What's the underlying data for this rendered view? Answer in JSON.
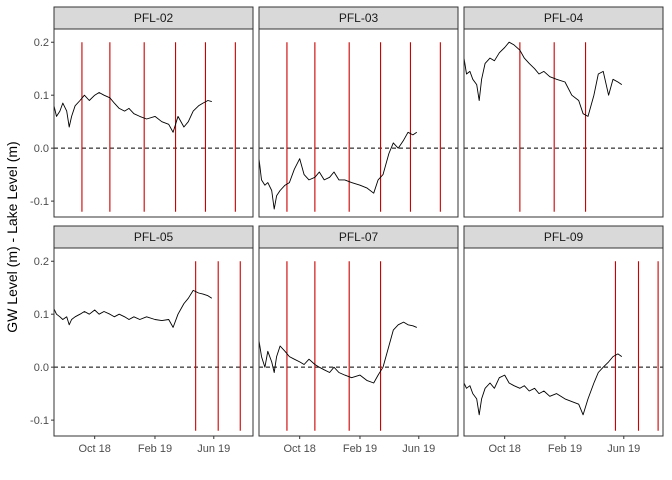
{
  "chart_data": {
    "type": "line",
    "layout": "facet-grid 3x2",
    "ylabel": "GW Level (m) - Lake Level (m)",
    "xlabel": "",
    "title": "",
    "ylim": [
      -0.13,
      0.225
    ],
    "xlim": [
      "2018-07-10",
      "2019-08-20"
    ],
    "x_ticks": [
      {
        "date": "2018-10-01",
        "label": "Oct 18"
      },
      {
        "date": "2019-02-01",
        "label": "Feb 19"
      },
      {
        "date": "2019-06-01",
        "label": "Jun 19"
      }
    ],
    "y_ticks": [
      {
        "value": -0.1,
        "label": "-0.1"
      },
      {
        "value": 0.0,
        "label": "0.0"
      },
      {
        "value": 0.1,
        "label": "0.1"
      },
      {
        "value": 0.2,
        "label": "0.2"
      }
    ],
    "reference_line": {
      "y": 0,
      "style": "dashed",
      "color": "#000000"
    },
    "series_color": "#000000",
    "vline_color": "#cc0000",
    "vline_range": [
      -0.12,
      0.2
    ],
    "panels": [
      {
        "name": "PFL-02",
        "vlines": [
          "2018-09-05",
          "2018-11-01",
          "2019-01-10",
          "2019-03-15",
          "2019-05-15",
          "2019-07-15"
        ],
        "series": [
          {
            "x": "2018-07-10",
            "y": 0.08
          },
          {
            "x": "2018-07-15",
            "y": 0.06
          },
          {
            "x": "2018-07-22",
            "y": 0.07
          },
          {
            "x": "2018-07-28",
            "y": 0.085
          },
          {
            "x": "2018-08-05",
            "y": 0.07
          },
          {
            "x": "2018-08-10",
            "y": 0.04
          },
          {
            "x": "2018-08-15",
            "y": 0.06
          },
          {
            "x": "2018-08-22",
            "y": 0.08
          },
          {
            "x": "2018-09-01",
            "y": 0.09
          },
          {
            "x": "2018-09-10",
            "y": 0.1
          },
          {
            "x": "2018-09-20",
            "y": 0.09
          },
          {
            "x": "2018-10-01",
            "y": 0.1
          },
          {
            "x": "2018-10-10",
            "y": 0.105
          },
          {
            "x": "2018-10-20",
            "y": 0.1
          },
          {
            "x": "2018-11-01",
            "y": 0.095
          },
          {
            "x": "2018-11-10",
            "y": 0.085
          },
          {
            "x": "2018-11-20",
            "y": 0.075
          },
          {
            "x": "2018-12-01",
            "y": 0.07
          },
          {
            "x": "2018-12-10",
            "y": 0.075
          },
          {
            "x": "2018-12-20",
            "y": 0.065
          },
          {
            "x": "2019-01-01",
            "y": 0.06
          },
          {
            "x": "2019-01-15",
            "y": 0.055
          },
          {
            "x": "2019-02-01",
            "y": 0.06
          },
          {
            "x": "2019-02-15",
            "y": 0.05
          },
          {
            "x": "2019-03-01",
            "y": 0.045
          },
          {
            "x": "2019-03-10",
            "y": 0.03
          },
          {
            "x": "2019-03-20",
            "y": 0.06
          },
          {
            "x": "2019-04-01",
            "y": 0.04
          },
          {
            "x": "2019-04-10",
            "y": 0.05
          },
          {
            "x": "2019-04-20",
            "y": 0.07
          },
          {
            "x": "2019-05-01",
            "y": 0.08
          },
          {
            "x": "2019-05-10",
            "y": 0.085
          },
          {
            "x": "2019-05-20",
            "y": 0.09
          },
          {
            "x": "2019-05-28",
            "y": 0.088
          }
        ]
      },
      {
        "name": "PFL-03",
        "vlines": [
          "2018-09-05",
          "2018-11-01",
          "2019-01-10",
          "2019-03-15",
          "2019-05-15",
          "2019-07-15"
        ],
        "series": [
          {
            "x": "2018-07-10",
            "y": -0.02
          },
          {
            "x": "2018-07-15",
            "y": -0.06
          },
          {
            "x": "2018-07-22",
            "y": -0.07
          },
          {
            "x": "2018-07-28",
            "y": -0.065
          },
          {
            "x": "2018-08-05",
            "y": -0.08
          },
          {
            "x": "2018-08-10",
            "y": -0.115
          },
          {
            "x": "2018-08-15",
            "y": -0.09
          },
          {
            "x": "2018-08-22",
            "y": -0.08
          },
          {
            "x": "2018-09-01",
            "y": -0.07
          },
          {
            "x": "2018-09-10",
            "y": -0.065
          },
          {
            "x": "2018-09-20",
            "y": -0.04
          },
          {
            "x": "2018-10-01",
            "y": -0.02
          },
          {
            "x": "2018-10-10",
            "y": -0.05
          },
          {
            "x": "2018-10-20",
            "y": -0.06
          },
          {
            "x": "2018-11-01",
            "y": -0.055
          },
          {
            "x": "2018-11-10",
            "y": -0.045
          },
          {
            "x": "2018-11-20",
            "y": -0.06
          },
          {
            "x": "2018-12-01",
            "y": -0.055
          },
          {
            "x": "2018-12-10",
            "y": -0.045
          },
          {
            "x": "2018-12-20",
            "y": -0.06
          },
          {
            "x": "2019-01-01",
            "y": -0.06
          },
          {
            "x": "2019-01-15",
            "y": -0.065
          },
          {
            "x": "2019-02-01",
            "y": -0.07
          },
          {
            "x": "2019-02-15",
            "y": -0.075
          },
          {
            "x": "2019-03-01",
            "y": -0.085
          },
          {
            "x": "2019-03-10",
            "y": -0.06
          },
          {
            "x": "2019-03-20",
            "y": -0.05
          },
          {
            "x": "2019-04-01",
            "y": -0.01
          },
          {
            "x": "2019-04-10",
            "y": 0.01
          },
          {
            "x": "2019-04-20",
            "y": 0.0
          },
          {
            "x": "2019-05-01",
            "y": 0.015
          },
          {
            "x": "2019-05-10",
            "y": 0.03
          },
          {
            "x": "2019-05-20",
            "y": 0.025
          },
          {
            "x": "2019-05-28",
            "y": 0.03
          }
        ]
      },
      {
        "name": "PFL-04",
        "vlines": [
          "2018-11-01",
          "2019-01-10",
          "2019-03-15"
        ],
        "series": [
          {
            "x": "2018-07-10",
            "y": 0.17
          },
          {
            "x": "2018-07-15",
            "y": 0.14
          },
          {
            "x": "2018-07-22",
            "y": 0.145
          },
          {
            "x": "2018-07-28",
            "y": 0.13
          },
          {
            "x": "2018-08-05",
            "y": 0.12
          },
          {
            "x": "2018-08-10",
            "y": 0.09
          },
          {
            "x": "2018-08-15",
            "y": 0.13
          },
          {
            "x": "2018-08-22",
            "y": 0.16
          },
          {
            "x": "2018-09-01",
            "y": 0.17
          },
          {
            "x": "2018-09-10",
            "y": 0.165
          },
          {
            "x": "2018-09-20",
            "y": 0.18
          },
          {
            "x": "2018-10-01",
            "y": 0.19
          },
          {
            "x": "2018-10-10",
            "y": 0.2
          },
          {
            "x": "2018-10-20",
            "y": 0.195
          },
          {
            "x": "2018-11-01",
            "y": 0.185
          },
          {
            "x": "2018-11-10",
            "y": 0.17
          },
          {
            "x": "2018-11-20",
            "y": 0.16
          },
          {
            "x": "2018-12-01",
            "y": 0.15
          },
          {
            "x": "2018-12-10",
            "y": 0.14
          },
          {
            "x": "2018-12-20",
            "y": 0.145
          },
          {
            "x": "2019-01-01",
            "y": 0.135
          },
          {
            "x": "2019-01-15",
            "y": 0.13
          },
          {
            "x": "2019-02-01",
            "y": 0.125
          },
          {
            "x": "2019-02-15",
            "y": 0.1
          },
          {
            "x": "2019-03-01",
            "y": 0.09
          },
          {
            "x": "2019-03-10",
            "y": 0.065
          },
          {
            "x": "2019-03-20",
            "y": 0.06
          },
          {
            "x": "2019-04-01",
            "y": 0.1
          },
          {
            "x": "2019-04-10",
            "y": 0.14
          },
          {
            "x": "2019-04-20",
            "y": 0.145
          },
          {
            "x": "2019-05-01",
            "y": 0.1
          },
          {
            "x": "2019-05-10",
            "y": 0.13
          },
          {
            "x": "2019-05-20",
            "y": 0.125
          },
          {
            "x": "2019-05-28",
            "y": 0.12
          }
        ]
      },
      {
        "name": "PFL-05",
        "vlines": [
          "2019-04-25",
          "2019-06-10",
          "2019-07-25"
        ],
        "series": [
          {
            "x": "2018-07-10",
            "y": 0.11
          },
          {
            "x": "2018-07-15",
            "y": 0.1
          },
          {
            "x": "2018-07-22",
            "y": 0.095
          },
          {
            "x": "2018-07-28",
            "y": 0.09
          },
          {
            "x": "2018-08-05",
            "y": 0.095
          },
          {
            "x": "2018-08-10",
            "y": 0.08
          },
          {
            "x": "2018-08-15",
            "y": 0.09
          },
          {
            "x": "2018-08-22",
            "y": 0.095
          },
          {
            "x": "2018-09-01",
            "y": 0.1
          },
          {
            "x": "2018-09-10",
            "y": 0.105
          },
          {
            "x": "2018-09-20",
            "y": 0.1
          },
          {
            "x": "2018-10-01",
            "y": 0.108
          },
          {
            "x": "2018-10-10",
            "y": 0.1
          },
          {
            "x": "2018-10-20",
            "y": 0.105
          },
          {
            "x": "2018-11-01",
            "y": 0.1
          },
          {
            "x": "2018-11-10",
            "y": 0.095
          },
          {
            "x": "2018-11-20",
            "y": 0.1
          },
          {
            "x": "2018-12-01",
            "y": 0.095
          },
          {
            "x": "2018-12-10",
            "y": 0.09
          },
          {
            "x": "2018-12-20",
            "y": 0.095
          },
          {
            "x": "2019-01-01",
            "y": 0.09
          },
          {
            "x": "2019-01-15",
            "y": 0.095
          },
          {
            "x": "2019-02-01",
            "y": 0.09
          },
          {
            "x": "2019-02-15",
            "y": 0.088
          },
          {
            "x": "2019-03-01",
            "y": 0.09
          },
          {
            "x": "2019-03-10",
            "y": 0.075
          },
          {
            "x": "2019-03-20",
            "y": 0.1
          },
          {
            "x": "2019-04-01",
            "y": 0.12
          },
          {
            "x": "2019-04-10",
            "y": 0.13
          },
          {
            "x": "2019-04-20",
            "y": 0.145
          },
          {
            "x": "2019-05-01",
            "y": 0.14
          },
          {
            "x": "2019-05-10",
            "y": 0.138
          },
          {
            "x": "2019-05-20",
            "y": 0.135
          },
          {
            "x": "2019-05-28",
            "y": 0.13
          }
        ]
      },
      {
        "name": "PFL-07",
        "vlines": [
          "2018-09-05",
          "2018-11-01",
          "2019-01-10",
          "2019-03-15"
        ],
        "series": [
          {
            "x": "2018-07-10",
            "y": 0.05
          },
          {
            "x": "2018-07-15",
            "y": 0.02
          },
          {
            "x": "2018-07-22",
            "y": 0.0
          },
          {
            "x": "2018-07-28",
            "y": 0.03
          },
          {
            "x": "2018-08-05",
            "y": 0.01
          },
          {
            "x": "2018-08-10",
            "y": -0.01
          },
          {
            "x": "2018-08-15",
            "y": 0.02
          },
          {
            "x": "2018-08-22",
            "y": 0.04
          },
          {
            "x": "2018-09-01",
            "y": 0.03
          },
          {
            "x": "2018-09-10",
            "y": 0.02
          },
          {
            "x": "2018-09-20",
            "y": 0.015
          },
          {
            "x": "2018-10-01",
            "y": 0.01
          },
          {
            "x": "2018-10-10",
            "y": 0.005
          },
          {
            "x": "2018-10-20",
            "y": 0.015
          },
          {
            "x": "2018-11-01",
            "y": 0.005
          },
          {
            "x": "2018-11-10",
            "y": 0.0
          },
          {
            "x": "2018-11-20",
            "y": -0.005
          },
          {
            "x": "2018-12-01",
            "y": -0.01
          },
          {
            "x": "2018-12-10",
            "y": 0.0
          },
          {
            "x": "2018-12-20",
            "y": -0.01
          },
          {
            "x": "2019-01-01",
            "y": -0.015
          },
          {
            "x": "2019-01-15",
            "y": -0.02
          },
          {
            "x": "2019-02-01",
            "y": -0.015
          },
          {
            "x": "2019-02-15",
            "y": -0.025
          },
          {
            "x": "2019-03-01",
            "y": -0.03
          },
          {
            "x": "2019-03-10",
            "y": -0.015
          },
          {
            "x": "2019-03-20",
            "y": 0.0
          },
          {
            "x": "2019-04-01",
            "y": 0.04
          },
          {
            "x": "2019-04-10",
            "y": 0.07
          },
          {
            "x": "2019-04-20",
            "y": 0.08
          },
          {
            "x": "2019-05-01",
            "y": 0.085
          },
          {
            "x": "2019-05-10",
            "y": 0.08
          },
          {
            "x": "2019-05-20",
            "y": 0.078
          },
          {
            "x": "2019-05-28",
            "y": 0.075
          }
        ]
      },
      {
        "name": "PFL-09",
        "vlines": [
          "2019-05-15",
          "2019-07-01",
          "2019-08-10"
        ],
        "series": [
          {
            "x": "2018-07-10",
            "y": -0.03
          },
          {
            "x": "2018-07-15",
            "y": -0.04
          },
          {
            "x": "2018-07-22",
            "y": -0.035
          },
          {
            "x": "2018-07-28",
            "y": -0.05
          },
          {
            "x": "2018-08-05",
            "y": -0.06
          },
          {
            "x": "2018-08-10",
            "y": -0.09
          },
          {
            "x": "2018-08-15",
            "y": -0.06
          },
          {
            "x": "2018-08-22",
            "y": -0.04
          },
          {
            "x": "2018-09-01",
            "y": -0.03
          },
          {
            "x": "2018-09-10",
            "y": -0.04
          },
          {
            "x": "2018-09-20",
            "y": -0.02
          },
          {
            "x": "2018-10-01",
            "y": -0.015
          },
          {
            "x": "2018-10-10",
            "y": -0.03
          },
          {
            "x": "2018-10-20",
            "y": -0.035
          },
          {
            "x": "2018-11-01",
            "y": -0.04
          },
          {
            "x": "2018-11-10",
            "y": -0.035
          },
          {
            "x": "2018-11-20",
            "y": -0.045
          },
          {
            "x": "2018-12-01",
            "y": -0.04
          },
          {
            "x": "2018-12-10",
            "y": -0.05
          },
          {
            "x": "2018-12-20",
            "y": -0.045
          },
          {
            "x": "2019-01-01",
            "y": -0.055
          },
          {
            "x": "2019-01-15",
            "y": -0.05
          },
          {
            "x": "2019-02-01",
            "y": -0.06
          },
          {
            "x": "2019-02-15",
            "y": -0.065
          },
          {
            "x": "2019-03-01",
            "y": -0.07
          },
          {
            "x": "2019-03-10",
            "y": -0.09
          },
          {
            "x": "2019-03-20",
            "y": -0.06
          },
          {
            "x": "2019-04-01",
            "y": -0.03
          },
          {
            "x": "2019-04-10",
            "y": -0.01
          },
          {
            "x": "2019-04-20",
            "y": 0.0
          },
          {
            "x": "2019-05-01",
            "y": 0.01
          },
          {
            "x": "2019-05-10",
            "y": 0.02
          },
          {
            "x": "2019-05-20",
            "y": 0.025
          },
          {
            "x": "2019-05-28",
            "y": 0.02
          }
        ]
      }
    ]
  }
}
